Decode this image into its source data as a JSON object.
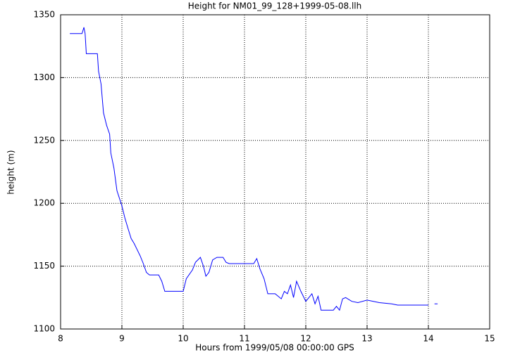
{
  "chart_data": {
    "type": "line",
    "title": "Height for NM01_99_128+1999-05-08.llh",
    "x_label": "Hours from 1999/05/08 00:00:00 GPS",
    "y_label": "height (m)",
    "x": [
      8.15,
      8.35,
      8.38,
      8.4,
      8.42,
      8.6,
      8.62,
      8.66,
      8.7,
      8.75,
      8.8,
      8.82,
      8.87,
      8.92,
      9.0,
      9.05,
      9.1,
      9.15,
      9.2,
      9.3,
      9.35,
      9.4,
      9.45,
      9.6,
      9.65,
      9.7,
      10.0,
      10.05,
      10.15,
      10.2,
      10.28,
      10.33,
      10.37,
      10.42,
      10.48,
      10.55,
      10.65,
      10.7,
      10.75,
      11.0,
      11.15,
      11.2,
      11.25,
      11.32,
      11.38,
      11.5,
      11.6,
      11.65,
      11.7,
      11.75,
      11.8,
      11.85,
      11.92,
      12.0,
      12.05,
      12.1,
      12.15,
      12.2,
      12.25,
      12.45,
      12.5,
      12.55,
      12.6,
      12.65,
      12.75,
      12.85,
      13.0,
      13.2,
      13.4,
      13.5,
      14.0,
      14.08,
      14.1,
      14.15
    ],
    "values": [
      1335,
      1335,
      1340,
      1335,
      1319,
      1319,
      1305,
      1295,
      1272,
      1262,
      1255,
      1240,
      1228,
      1210,
      1198,
      1188,
      1180,
      1172,
      1168,
      1158,
      1152,
      1145,
      1143,
      1143,
      1138,
      1130,
      1130,
      1140,
      1147,
      1153,
      1157,
      1150,
      1142,
      1145,
      1155,
      1157,
      1157,
      1153,
      1152,
      1152,
      1152,
      1156,
      1148,
      1140,
      1128,
      1128,
      1124,
      1130,
      1128,
      1135,
      1125,
      1138,
      1130,
      1122,
      1125,
      1128,
      1120,
      1126,
      1115,
      1115,
      1118,
      1115,
      1124,
      1125,
      1122,
      1121,
      1123,
      1121,
      1120,
      1119,
      1119,
      null,
      1120,
      1120
    ],
    "color": "#0000ff",
    "xlim": [
      8,
      15
    ],
    "xticks": [
      8,
      9,
      10,
      11,
      12,
      13,
      14,
      15
    ],
    "ylim": [
      1100,
      1350
    ],
    "yticks": [
      1100,
      1150,
      1200,
      1250,
      1300,
      1350
    ],
    "grid": true
  }
}
